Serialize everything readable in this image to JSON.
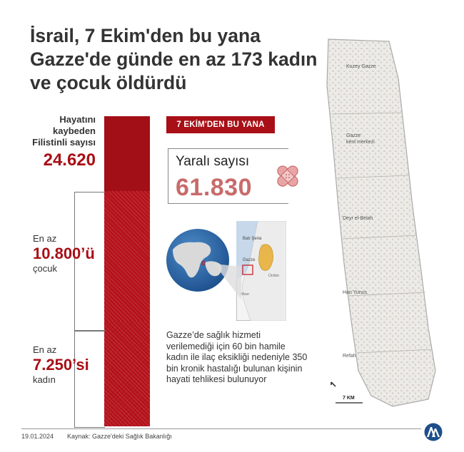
{
  "title": {
    "line1": "İsrail, 7 Ekim'den bu yana",
    "line2": "Gazze'de günde en az 173 kadın",
    "line3": "ve çocuk öldürdü"
  },
  "deaths": {
    "label1": "Hayatını",
    "label2": "kaybeden",
    "label3": "Filistinli sayısı",
    "value": "24.620"
  },
  "children": {
    "prefix": "En az",
    "value": "10.800’ü",
    "suffix": "çocuk"
  },
  "women": {
    "prefix": "En az",
    "value": "7.250’si",
    "suffix": "kadın"
  },
  "badge": "7 EKİM'DEN  BU YANA",
  "injured": {
    "label": "Yaralı sayısı",
    "value": "61.830"
  },
  "inset_map": {
    "west_bank": "Batı Şeria",
    "gaza": "Gazze",
    "jordan": "Ürdün",
    "egypt": "Mısır"
  },
  "note": "Gazze’de sağlık hizmeti verilemediği için 60 bin hamile kadın ile ilaç eksikliği nedeniyle 350 bin kronik hastalığı bulunan kişinin hayati tehlikesi bulunuyor",
  "gaza_map": {
    "north": "Kuzey Gazze",
    "center1": "Gazze",
    "center2": "kent merkezi",
    "deir": "Deyr el-Belah",
    "khan": "Han Yunus",
    "rafah": "Refah",
    "scale": "7 KM"
  },
  "footer": {
    "date": "19.01.2024",
    "source": "Kaynak: Gazze'deki Sağlık Bakanlığı"
  },
  "colors": {
    "accent": "#a80f16",
    "injured": "#c96b6b"
  },
  "icons": {
    "bandage": "bandage-icon",
    "logo": "aa-logo-icon",
    "north_arrow": "north-arrow-icon"
  }
}
